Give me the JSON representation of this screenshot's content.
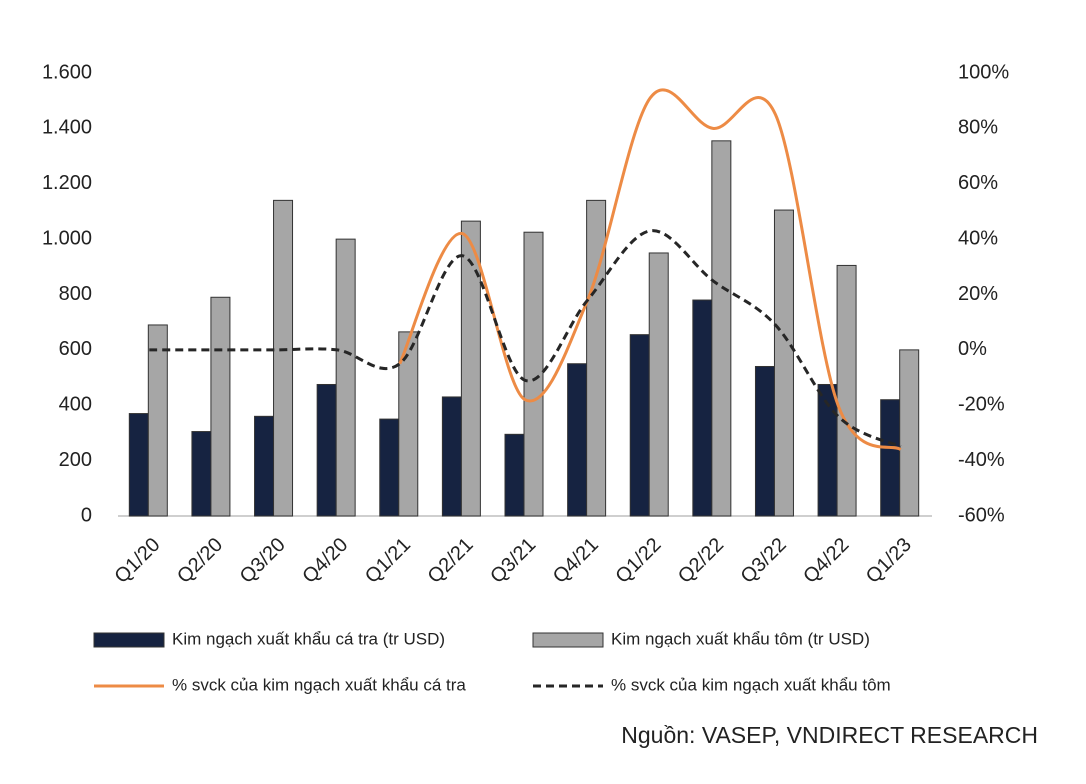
{
  "chart_data": {
    "type": "bar",
    "categories": [
      "Q1/20",
      "Q2/20",
      "Q3/20",
      "Q4/20",
      "Q1/21",
      "Q2/21",
      "Q3/21",
      "Q4/21",
      "Q1/22",
      "Q2/22",
      "Q3/22",
      "Q4/22",
      "Q1/23"
    ],
    "series": [
      {
        "name": "Kim ngạch xuất khẩu cá tra (tr USD)",
        "color": "#162341",
        "kind": "bar",
        "values": [
          370,
          305,
          360,
          475,
          350,
          430,
          295,
          550,
          655,
          780,
          540,
          475,
          420
        ]
      },
      {
        "name": "Kim ngạch xuất khẩu tôm (tr USD)",
        "color": "#a6a6a6",
        "kind": "bar",
        "values": [
          690,
          790,
          1140,
          1000,
          665,
          1065,
          1025,
          1140,
          950,
          1355,
          1105,
          905,
          600
        ]
      },
      {
        "name": "% svck của kim ngạch xuất khẩu cá tra",
        "color": "#ed8b45",
        "kind": "line",
        "axis": "y2",
        "values": [
          null,
          null,
          null,
          null,
          -5,
          42,
          -18,
          18,
          91,
          80,
          85,
          -20,
          -36
        ]
      },
      {
        "name": "% svck của kim ngạch xuất khẩu tôm",
        "color": "#262626",
        "kind": "line",
        "dashed": true,
        "axis": "y2",
        "values": [
          0,
          0,
          0,
          0,
          -5,
          34,
          -11,
          18,
          43,
          25,
          9,
          -24,
          -35
        ]
      }
    ],
    "ylim": [
      0,
      1600
    ],
    "yticks": [
      0,
      200,
      400,
      600,
      800,
      {
        "value": 1000,
        "label": "1.000"
      },
      {
        "value": 1200,
        "label": "1.200"
      },
      {
        "value": 1400,
        "label": "1.400"
      },
      {
        "value": 1600,
        "label": "1.600"
      }
    ],
    "y2lim": [
      -60,
      100
    ],
    "y2ticks": [
      {
        "value": -60,
        "label": "-60%"
      },
      {
        "value": -40,
        "label": "-40%"
      },
      {
        "value": -20,
        "label": "-20%"
      },
      {
        "value": 0,
        "label": "0%"
      },
      {
        "value": 20,
        "label": "20%"
      },
      {
        "value": 40,
        "label": "40%"
      },
      {
        "value": 60,
        "label": "60%"
      },
      {
        "value": 80,
        "label": "80%"
      },
      {
        "value": 100,
        "label": "100%"
      }
    ],
    "source": "Nguồn: VASEP, VNDIRECT RESEARCH"
  }
}
